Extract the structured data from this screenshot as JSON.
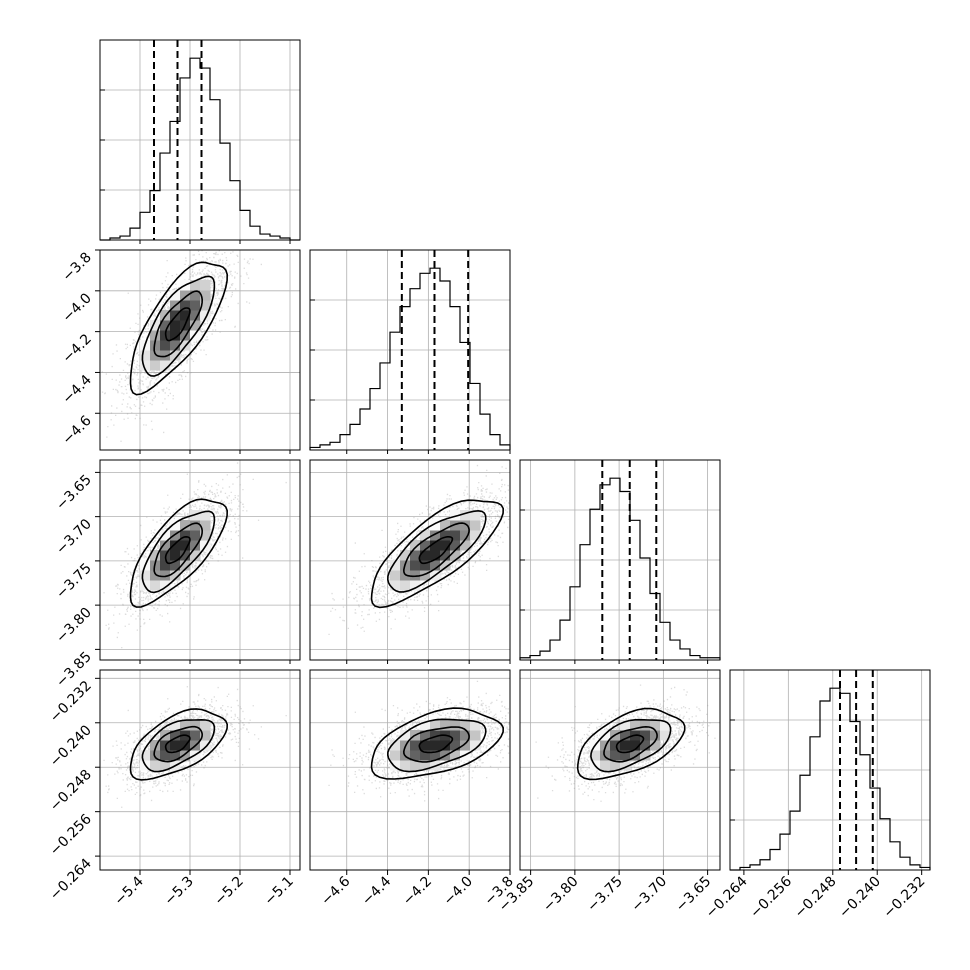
{
  "chart_data": {
    "type": "corner",
    "grid": true,
    "parameter_count": 4,
    "parameters": [
      {
        "xlim": [
          -5.48,
          -5.08
        ],
        "ticks": [
          -5.4,
          -5.3,
          -5.2,
          -5.1
        ],
        "tick_labels": [
          "−5.4",
          "−5.3",
          "−5.2",
          "−5.1"
        ]
      },
      {
        "xlim": [
          -4.78,
          -3.8
        ],
        "ticks": [
          -4.6,
          -4.4,
          -4.2,
          -4.0,
          -3.8
        ],
        "tick_labels": [
          "−4.6",
          "−4.4",
          "−4.2",
          "−4.0",
          "−3.8"
        ]
      },
      {
        "xlim": [
          -3.862,
          -3.636
        ],
        "ticks": [
          -3.85,
          -3.8,
          -3.75,
          -3.7,
          -3.65
        ],
        "tick_labels": [
          "−3.85",
          "−3.80",
          "−3.75",
          "−3.70",
          "−3.65"
        ]
      },
      {
        "xlim": [
          -0.2665,
          -0.2305
        ],
        "ticks": [
          -0.264,
          -0.256,
          -0.248,
          -0.24,
          -0.232
        ],
        "tick_labels": [
          "−0.264",
          "−0.256",
          "−0.248",
          "−0.240",
          "−0.232"
        ]
      }
    ],
    "quantiles": [
      [
        -5.372,
        -5.325,
        -5.277
      ],
      [
        -4.33,
        -4.17,
        -4.005
      ],
      [
        -3.769,
        -3.738,
        -3.708
      ],
      [
        -0.2467,
        -0.2438,
        -0.2408
      ]
    ],
    "histograms": [
      [
        0,
        1,
        2,
        6,
        14,
        25,
        44,
        60,
        82,
        92,
        87,
        71,
        49,
        30,
        15,
        7,
        3,
        2,
        1,
        0
      ],
      [
        1,
        2,
        3,
        6,
        10,
        16,
        24,
        34,
        46,
        56,
        63,
        69,
        71,
        66,
        56,
        42,
        26,
        14,
        6,
        2
      ],
      [
        1,
        2,
        4,
        9,
        18,
        33,
        52,
        68,
        79,
        82,
        76,
        63,
        46,
        30,
        17,
        9,
        5,
        2,
        1,
        1
      ],
      [
        0,
        1,
        2,
        4,
        8,
        14,
        23,
        37,
        52,
        66,
        71,
        69,
        58,
        45,
        32,
        20,
        11,
        5,
        2,
        1
      ]
    ],
    "gaussians": {
      "1_0": {
        "mean": [
          -5.325,
          -4.165
        ],
        "sd": [
          0.048,
          0.16
        ],
        "rho": 0.74
      },
      "2_0": {
        "mean": [
          -5.325,
          -3.738
        ],
        "sd": [
          0.048,
          0.03
        ],
        "rho": 0.72
      },
      "2_1": {
        "mean": [
          -4.165,
          -3.738
        ],
        "sd": [
          0.16,
          0.03
        ],
        "rho": 0.76
      },
      "3_0": {
        "mean": [
          -5.325,
          -0.2438
        ],
        "sd": [
          0.048,
          0.0031
        ],
        "rho": 0.55
      },
      "3_1": {
        "mean": [
          -4.165,
          -0.2438
        ],
        "sd": [
          0.16,
          0.0031
        ],
        "rho": 0.45
      },
      "3_2": {
        "mean": [
          -3.738,
          -0.2438
        ],
        "sd": [
          0.03,
          0.0031
        ],
        "rho": 0.5
      }
    },
    "contour_levels": [
      0.5,
      1.0,
      1.5,
      2.0
    ],
    "colors": {
      "ink": "#000000",
      "grid": "#b0b0b0",
      "scatter": "#9a9a9a",
      "density": "#000000"
    }
  }
}
